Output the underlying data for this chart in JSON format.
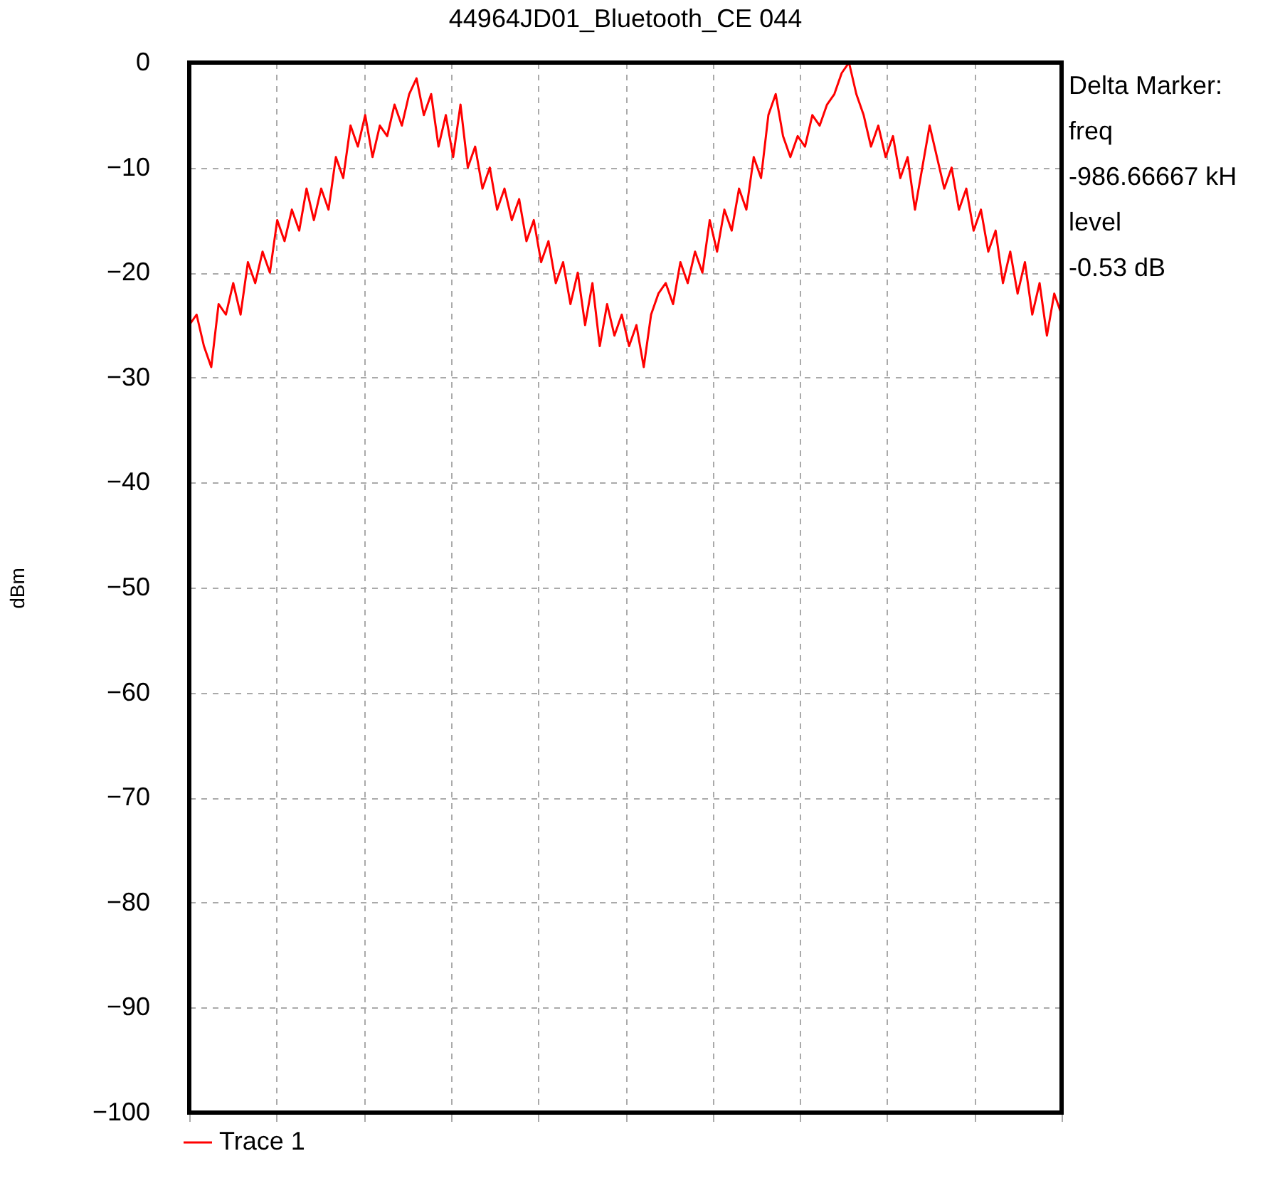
{
  "chart_data": {
    "type": "line",
    "title": "44964JD01_Bluetooth_CE 044",
    "ylabel": "dBm",
    "categories": [
      null,
      null,
      null,
      null,
      null,
      null,
      null,
      null,
      null,
      null,
      null,
      null,
      null,
      null,
      null,
      null,
      null,
      null,
      null,
      null,
      null,
      null,
      null,
      null,
      null,
      null,
      null,
      null,
      null,
      null,
      null,
      null,
      null,
      null,
      null,
      null,
      null,
      null,
      null,
      null,
      null,
      null,
      null,
      null,
      null,
      null,
      null,
      null,
      null,
      null,
      null,
      null,
      null,
      null,
      null,
      null,
      null,
      null,
      null,
      null,
      null,
      null,
      null,
      null,
      null,
      null,
      null,
      null,
      null,
      null,
      null,
      null,
      null,
      null,
      null,
      null,
      null,
      null,
      null,
      null,
      null,
      null,
      null,
      null,
      null,
      null,
      null,
      null,
      null,
      null,
      null,
      null,
      null,
      null,
      null,
      null,
      null,
      null,
      null,
      null,
      null,
      null,
      null,
      null,
      null,
      null,
      null,
      null,
      null,
      null,
      null,
      null,
      null,
      null,
      null,
      null,
      null,
      null,
      null,
      null
    ],
    "series": [
      {
        "name": "Trace 1",
        "color": "#ff0000",
        "values": [
          -25,
          -24,
          -27,
          -29,
          -23,
          -24,
          -21,
          -24,
          -19,
          -21,
          -18,
          -20,
          -15,
          -17,
          -14,
          -16,
          -12,
          -15,
          -12,
          -14,
          -9,
          -11,
          -6,
          -8,
          -5,
          -9,
          -6,
          -7,
          -4,
          -6,
          -3,
          -1.5,
          -5,
          -3,
          -8,
          -5,
          -9,
          -4,
          -10,
          -8,
          -12,
          -10,
          -14,
          -12,
          -15,
          -13,
          -17,
          -15,
          -19,
          -17,
          -21,
          -19,
          -23,
          -20,
          -25,
          -21,
          -27,
          -23,
          -26,
          -24,
          -27,
          -25,
          -29,
          -24,
          -22,
          -21,
          -23,
          -19,
          -21,
          -18,
          -20,
          -15,
          -18,
          -14,
          -16,
          -12,
          -14,
          -9,
          -11,
          -5,
          -3,
          -7,
          -9,
          -7,
          -8,
          -5,
          -6,
          -4,
          -3,
          -1,
          0,
          -3,
          -5,
          -8,
          -6,
          -9,
          -7,
          -11,
          -9,
          -14,
          -10,
          -6,
          -9,
          -12,
          -10,
          -14,
          -12,
          -16,
          -14,
          -18,
          -16,
          -21,
          -18,
          -22,
          -19,
          -24,
          -21,
          -26,
          -22,
          -24
        ]
      }
    ],
    "ylim": [
      -100,
      0
    ],
    "yticks": [
      0,
      -10,
      -20,
      -30,
      -40,
      -50,
      -60,
      -70,
      -80,
      -90,
      -100
    ],
    "grid": true,
    "legend": "bottom",
    "tick_labels": "y",
    "marker": "none",
    "line_style": "solid",
    "annotations": [
      "Delta Marker:",
      "freq",
      "-986.66667 kH",
      "level",
      "-0.53 dB"
    ]
  }
}
